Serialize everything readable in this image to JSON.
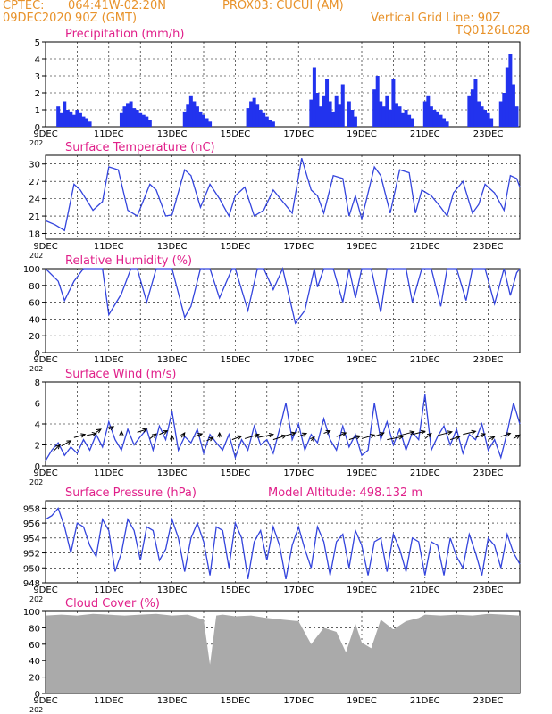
{
  "header": {
    "line1_left": "CPTEC:",
    "line1_coords": "064:41W-02:20N",
    "line1_station": "PROX03: CUCUI (AM)",
    "line2_left": "09DEC2020 90Z (GMT)",
    "line2_right": "Vertical Grid Line: 90Z",
    "line3_right": "TQ0126L028"
  },
  "x_axis": {
    "tick_labels": [
      "9DEC",
      "11DEC",
      "13DEC",
      "15DEC",
      "17DEC",
      "19DEC",
      "21DEC",
      "23DEC"
    ],
    "year_label": "202",
    "start_day": 9,
    "end_day": 24
  },
  "colors": {
    "line": "#3344dd",
    "bar": "#2233ee",
    "cloud": "#aaaaaa",
    "title": "#e0208a",
    "header": "#e8922a"
  },
  "chart_data": [
    {
      "type": "bar",
      "title": "Precipitation (mm/h)",
      "ylim": [
        0,
        5
      ],
      "yticks": [
        0,
        1,
        2,
        3,
        4,
        5
      ],
      "x": [
        9.4,
        9.5,
        9.6,
        9.7,
        9.8,
        9.9,
        10.0,
        10.1,
        10.2,
        10.3,
        10.4,
        11.4,
        11.5,
        11.6,
        11.7,
        11.8,
        11.9,
        12.0,
        12.1,
        12.2,
        12.3,
        13.4,
        13.5,
        13.6,
        13.7,
        13.8,
        13.9,
        14.0,
        14.1,
        14.2,
        15.4,
        15.5,
        15.6,
        15.7,
        15.8,
        15.9,
        16.0,
        16.1,
        16.2,
        17.4,
        17.5,
        17.6,
        17.7,
        17.8,
        17.9,
        18.0,
        18.1,
        18.2,
        18.3,
        18.4,
        18.6,
        18.7,
        18.8,
        19.4,
        19.5,
        19.6,
        19.7,
        19.8,
        19.9,
        20.0,
        20.1,
        20.2,
        20.3,
        20.4,
        20.5,
        20.6,
        21.0,
        21.1,
        21.2,
        21.3,
        21.4,
        21.5,
        21.6,
        21.7,
        22.4,
        22.5,
        22.6,
        22.7,
        22.8,
        22.9,
        23.0,
        23.1,
        23.4,
        23.5,
        23.6,
        23.7,
        23.8,
        23.9
      ],
      "values": [
        1.2,
        0.8,
        1.5,
        1.0,
        0.9,
        0.7,
        1.0,
        0.8,
        0.6,
        0.5,
        0.3,
        0.8,
        1.2,
        1.4,
        1.5,
        1.1,
        1.0,
        0.8,
        0.7,
        0.6,
        0.4,
        0.9,
        1.3,
        1.8,
        1.5,
        1.2,
        0.9,
        0.7,
        0.5,
        0.3,
        1.1,
        1.5,
        1.7,
        1.3,
        1.0,
        0.8,
        0.6,
        0.4,
        0.3,
        1.6,
        3.5,
        2.0,
        1.2,
        1.8,
        2.8,
        1.5,
        0.9,
        1.8,
        1.3,
        2.5,
        1.5,
        1.0,
        0.6,
        2.2,
        3.0,
        1.5,
        1.2,
        1.8,
        1.0,
        2.8,
        1.4,
        1.2,
        0.8,
        1.0,
        0.7,
        0.5,
        1.5,
        1.8,
        1.2,
        1.0,
        0.9,
        0.7,
        0.5,
        0.3,
        1.8,
        2.2,
        2.8,
        1.5,
        1.2,
        1.0,
        0.8,
        0.5,
        1.5,
        2.0,
        3.5,
        4.3,
        2.5,
        1.2
      ]
    },
    {
      "type": "line",
      "title": "Surface Temperature (nC)",
      "ylim": [
        17,
        31.5
      ],
      "yticks": [
        18,
        21,
        24,
        27,
        30
      ],
      "x": [
        9.0,
        9.3,
        9.6,
        9.9,
        10.1,
        10.5,
        10.8,
        11.0,
        11.3,
        11.6,
        11.9,
        12.3,
        12.5,
        12.8,
        13.0,
        13.4,
        13.6,
        13.9,
        14.2,
        14.5,
        14.8,
        15.0,
        15.3,
        15.6,
        15.9,
        16.2,
        16.5,
        16.8,
        17.1,
        17.4,
        17.6,
        17.8,
        18.1,
        18.4,
        18.6,
        18.8,
        19.0,
        19.4,
        19.6,
        19.9,
        20.2,
        20.5,
        20.7,
        20.9,
        21.2,
        21.5,
        21.7,
        21.9,
        22.2,
        22.5,
        22.7,
        22.9,
        23.2,
        23.5,
        23.7,
        23.9,
        24.0
      ],
      "values": [
        20.2,
        19.5,
        18.5,
        26.5,
        25.5,
        22.0,
        23.5,
        29.5,
        29.0,
        22.0,
        21.0,
        26.5,
        25.5,
        21.0,
        21.2,
        29.0,
        28.0,
        22.5,
        26.5,
        24.0,
        21.0,
        24.5,
        26.0,
        21.0,
        22.0,
        25.5,
        23.5,
        21.5,
        31.0,
        25.5,
        24.5,
        21.5,
        28.0,
        27.5,
        21.0,
        24.5,
        20.5,
        29.5,
        28.0,
        21.5,
        29.0,
        28.5,
        21.5,
        25.5,
        24.5,
        22.5,
        21.0,
        25.0,
        27.0,
        21.5,
        23.0,
        26.5,
        25.0,
        22.0,
        28.0,
        27.5,
        26.0
      ]
    },
    {
      "type": "line",
      "title": "Relative Humidity (%)",
      "ylim": [
        0,
        100
      ],
      "yticks": [
        0,
        20,
        40,
        60,
        80,
        100
      ],
      "x": [
        9.0,
        9.4,
        9.6,
        9.9,
        10.2,
        10.5,
        10.8,
        11.0,
        11.4,
        11.7,
        11.9,
        12.2,
        12.5,
        12.8,
        13.0,
        13.4,
        13.6,
        13.9,
        14.2,
        14.5,
        14.9,
        15.0,
        15.4,
        15.7,
        15.9,
        16.2,
        16.5,
        16.9,
        17.2,
        17.5,
        17.6,
        17.8,
        18.1,
        18.4,
        18.6,
        18.8,
        19.0,
        19.3,
        19.6,
        19.8,
        20.0,
        20.4,
        20.6,
        20.9,
        21.2,
        21.5,
        21.7,
        22.0,
        22.3,
        22.5,
        22.9,
        23.2,
        23.5,
        23.7,
        23.9,
        24.0
      ],
      "values": [
        100,
        85,
        62,
        85,
        100,
        100,
        100,
        45,
        70,
        100,
        100,
        60,
        100,
        100,
        100,
        42,
        55,
        100,
        100,
        65,
        100,
        100,
        50,
        100,
        100,
        75,
        100,
        35,
        50,
        100,
        78,
        100,
        100,
        60,
        100,
        65,
        100,
        100,
        48,
        100,
        100,
        100,
        60,
        100,
        100,
        55,
        100,
        100,
        62,
        100,
        100,
        58,
        100,
        68,
        95,
        100
      ]
    },
    {
      "type": "line",
      "title": "Surface Wind (m/s)",
      "ylim": [
        0,
        8
      ],
      "yticks": [
        0,
        2,
        4,
        6,
        8
      ],
      "x": [
        9.0,
        9.2,
        9.4,
        9.6,
        9.8,
        10.0,
        10.2,
        10.4,
        10.6,
        10.8,
        11.0,
        11.2,
        11.4,
        11.6,
        11.8,
        12.0,
        12.2,
        12.4,
        12.6,
        12.8,
        13.0,
        13.2,
        13.4,
        13.6,
        13.8,
        14.0,
        14.2,
        14.4,
        14.6,
        14.8,
        15.0,
        15.2,
        15.4,
        15.6,
        15.8,
        16.0,
        16.2,
        16.4,
        16.6,
        16.8,
        17.0,
        17.2,
        17.4,
        17.6,
        17.8,
        18.0,
        18.2,
        18.4,
        18.6,
        18.8,
        19.0,
        19.2,
        19.4,
        19.6,
        19.8,
        20.0,
        20.2,
        20.4,
        20.6,
        20.8,
        21.0,
        21.2,
        21.4,
        21.6,
        21.8,
        22.0,
        22.2,
        22.4,
        22.6,
        22.8,
        23.0,
        23.2,
        23.4,
        23.6,
        23.8,
        24.0
      ],
      "values": [
        0.5,
        1.5,
        2.2,
        1.0,
        1.8,
        1.2,
        2.5,
        1.5,
        3.0,
        1.8,
        4.2,
        2.5,
        1.5,
        3.5,
        2.0,
        2.8,
        3.5,
        1.5,
        3.8,
        2.5,
        5.2,
        1.5,
        2.8,
        2.2,
        3.5,
        1.2,
        3.0,
        2.2,
        1.5,
        3.0,
        0.8,
        2.5,
        1.5,
        3.8,
        2.0,
        2.5,
        1.2,
        3.5,
        6.0,
        2.5,
        4.0,
        1.5,
        3.0,
        2.2,
        4.5,
        2.5,
        1.5,
        3.8,
        1.8,
        3.0,
        1.0,
        1.5,
        6.0,
        2.5,
        4.2,
        2.0,
        3.5,
        1.5,
        3.2,
        2.5,
        6.8,
        1.5,
        2.8,
        3.8,
        2.0,
        3.5,
        1.2,
        3.0,
        2.5,
        4.0,
        1.5,
        2.5,
        0.8,
        3.2,
        6.0,
        4.0
      ],
      "arrows": [
        [
          9.25,
          1.4,
          0.2,
          0.6
        ],
        [
          9.5,
          1.9,
          0.3,
          0.5
        ],
        [
          9.9,
          2.7,
          0.35,
          0.3
        ],
        [
          10.3,
          2.9,
          0.3,
          0.2
        ],
        [
          10.6,
          3.2,
          0.15,
          0.3
        ],
        [
          11.0,
          3.5,
          0.15,
          0.25
        ],
        [
          11.4,
          2.9,
          0.0,
          0.4
        ],
        [
          11.9,
          3.2,
          0.3,
          0.3
        ],
        [
          12.3,
          2.6,
          0.2,
          0.45
        ],
        [
          12.6,
          3.0,
          0.25,
          0.35
        ],
        [
          13.0,
          2.4,
          0.0,
          0.5
        ],
        [
          13.3,
          2.7,
          0.1,
          0.45
        ],
        [
          13.7,
          2.8,
          0.25,
          0.25
        ],
        [
          14.1,
          2.4,
          0.2,
          0.3
        ],
        [
          14.5,
          2.7,
          0.0,
          0.45
        ],
        [
          14.9,
          2.5,
          0.3,
          0.35
        ],
        [
          15.3,
          2.6,
          0.45,
          0.4
        ],
        [
          15.7,
          2.7,
          0.5,
          0.3
        ],
        [
          16.2,
          2.5,
          0.4,
          0.4
        ],
        [
          16.6,
          2.9,
          0.3,
          0.25
        ],
        [
          17.0,
          2.8,
          0.25,
          0.3
        ],
        [
          17.4,
          2.4,
          0.1,
          0.35
        ],
        [
          17.8,
          3.1,
          0.2,
          0.25
        ],
        [
          18.2,
          2.8,
          0.3,
          0.35
        ],
        [
          18.6,
          2.5,
          0.35,
          0.35
        ],
        [
          19.0,
          2.6,
          0.4,
          0.35
        ],
        [
          19.4,
          2.8,
          0.3,
          0.35
        ],
        [
          19.8,
          2.5,
          0.5,
          0.3
        ],
        [
          20.2,
          2.9,
          0.45,
          0.35
        ],
        [
          20.6,
          3.0,
          0.4,
          0.3
        ],
        [
          21.0,
          2.6,
          0.2,
          0.5
        ],
        [
          21.4,
          2.9,
          0.45,
          0.35
        ],
        [
          21.8,
          2.5,
          0.3,
          0.3
        ],
        [
          22.2,
          3.0,
          0.4,
          0.3
        ],
        [
          22.6,
          2.7,
          0.3,
          0.35
        ],
        [
          23.0,
          2.5,
          0.2,
          0.3
        ],
        [
          23.4,
          2.8,
          0.3,
          0.3
        ],
        [
          23.8,
          2.6,
          0.2,
          0.35
        ]
      ]
    },
    {
      "type": "line",
      "title": "Surface Pressure (hPa)",
      "annotation": "Model Altitude: 498.132 m",
      "ylim": [
        948,
        959
      ],
      "yticks": [
        948,
        950,
        952,
        954,
        956,
        958
      ],
      "x": [
        9.0,
        9.2,
        9.4,
        9.6,
        9.8,
        10.0,
        10.2,
        10.4,
        10.6,
        10.8,
        11.0,
        11.2,
        11.4,
        11.6,
        11.8,
        12.0,
        12.2,
        12.4,
        12.6,
        12.8,
        13.0,
        13.2,
        13.4,
        13.6,
        13.8,
        14.0,
        14.2,
        14.4,
        14.6,
        14.8,
        15.0,
        15.2,
        15.4,
        15.6,
        15.8,
        16.0,
        16.2,
        16.4,
        16.6,
        16.8,
        17.0,
        17.2,
        17.4,
        17.6,
        17.8,
        18.0,
        18.2,
        18.4,
        18.6,
        18.8,
        19.0,
        19.2,
        19.4,
        19.6,
        19.8,
        20.0,
        20.2,
        20.4,
        20.6,
        20.8,
        21.0,
        21.2,
        21.4,
        21.6,
        21.8,
        22.0,
        22.2,
        22.4,
        22.6,
        22.8,
        23.0,
        23.2,
        23.4,
        23.6,
        23.8,
        24.0
      ],
      "values": [
        956.5,
        957.0,
        958.0,
        955.5,
        952.0,
        956.0,
        955.5,
        953.0,
        951.5,
        956.5,
        955.0,
        949.5,
        952.0,
        956.5,
        955.0,
        951.0,
        955.5,
        955.0,
        951.0,
        952.5,
        956.5,
        954.0,
        949.5,
        954.0,
        956.0,
        953.5,
        949.0,
        955.5,
        955.0,
        950.0,
        956.0,
        954.0,
        948.5,
        953.5,
        955.0,
        951.0,
        955.5,
        953.0,
        948.5,
        953.0,
        955.5,
        952.5,
        950.0,
        955.5,
        953.5,
        949.0,
        953.5,
        954.5,
        950.0,
        955.0,
        953.0,
        949.0,
        953.5,
        954.0,
        949.5,
        954.5,
        952.5,
        949.5,
        954.0,
        953.5,
        949.0,
        953.5,
        953.0,
        949.0,
        954.0,
        951.5,
        950.0,
        954.5,
        952.0,
        949.0,
        954.0,
        953.0,
        950.0,
        954.5,
        952.0,
        950.5
      ]
    },
    {
      "type": "area",
      "title": "Cloud Cover (%)",
      "ylim": [
        0,
        100
      ],
      "yticks": [
        0,
        20,
        40,
        60,
        80,
        100
      ],
      "x": [
        9.0,
        9.5,
        10.0,
        10.5,
        11.0,
        11.5,
        12.0,
        12.5,
        13.0,
        13.5,
        14.0,
        14.2,
        14.4,
        14.6,
        15.0,
        15.5,
        16.0,
        16.5,
        17.0,
        17.4,
        17.8,
        18.2,
        18.5,
        18.8,
        19.0,
        19.3,
        19.6,
        20.0,
        20.4,
        20.8,
        21.0,
        21.5,
        22.0,
        22.5,
        23.0,
        23.5,
        24.0
      ],
      "values": [
        95,
        96,
        95,
        97,
        96,
        95,
        96,
        97,
        95,
        96,
        90,
        35,
        95,
        96,
        94,
        95,
        92,
        90,
        88,
        60,
        80,
        75,
        50,
        85,
        62,
        55,
        90,
        78,
        88,
        92,
        96,
        95,
        96,
        95,
        97,
        96,
        95
      ]
    }
  ],
  "panels": [
    {
      "title": "Precipitation (mm/h)"
    },
    {
      "title": "Surface Temperature (nC)"
    },
    {
      "title": "Relative Humidity (%)"
    },
    {
      "title": "Surface Wind (m/s)"
    },
    {
      "title": "Surface Pressure (hPa)",
      "annotation": "Model Altitude: 498.132 m"
    },
    {
      "title": "Cloud Cover (%)"
    }
  ]
}
